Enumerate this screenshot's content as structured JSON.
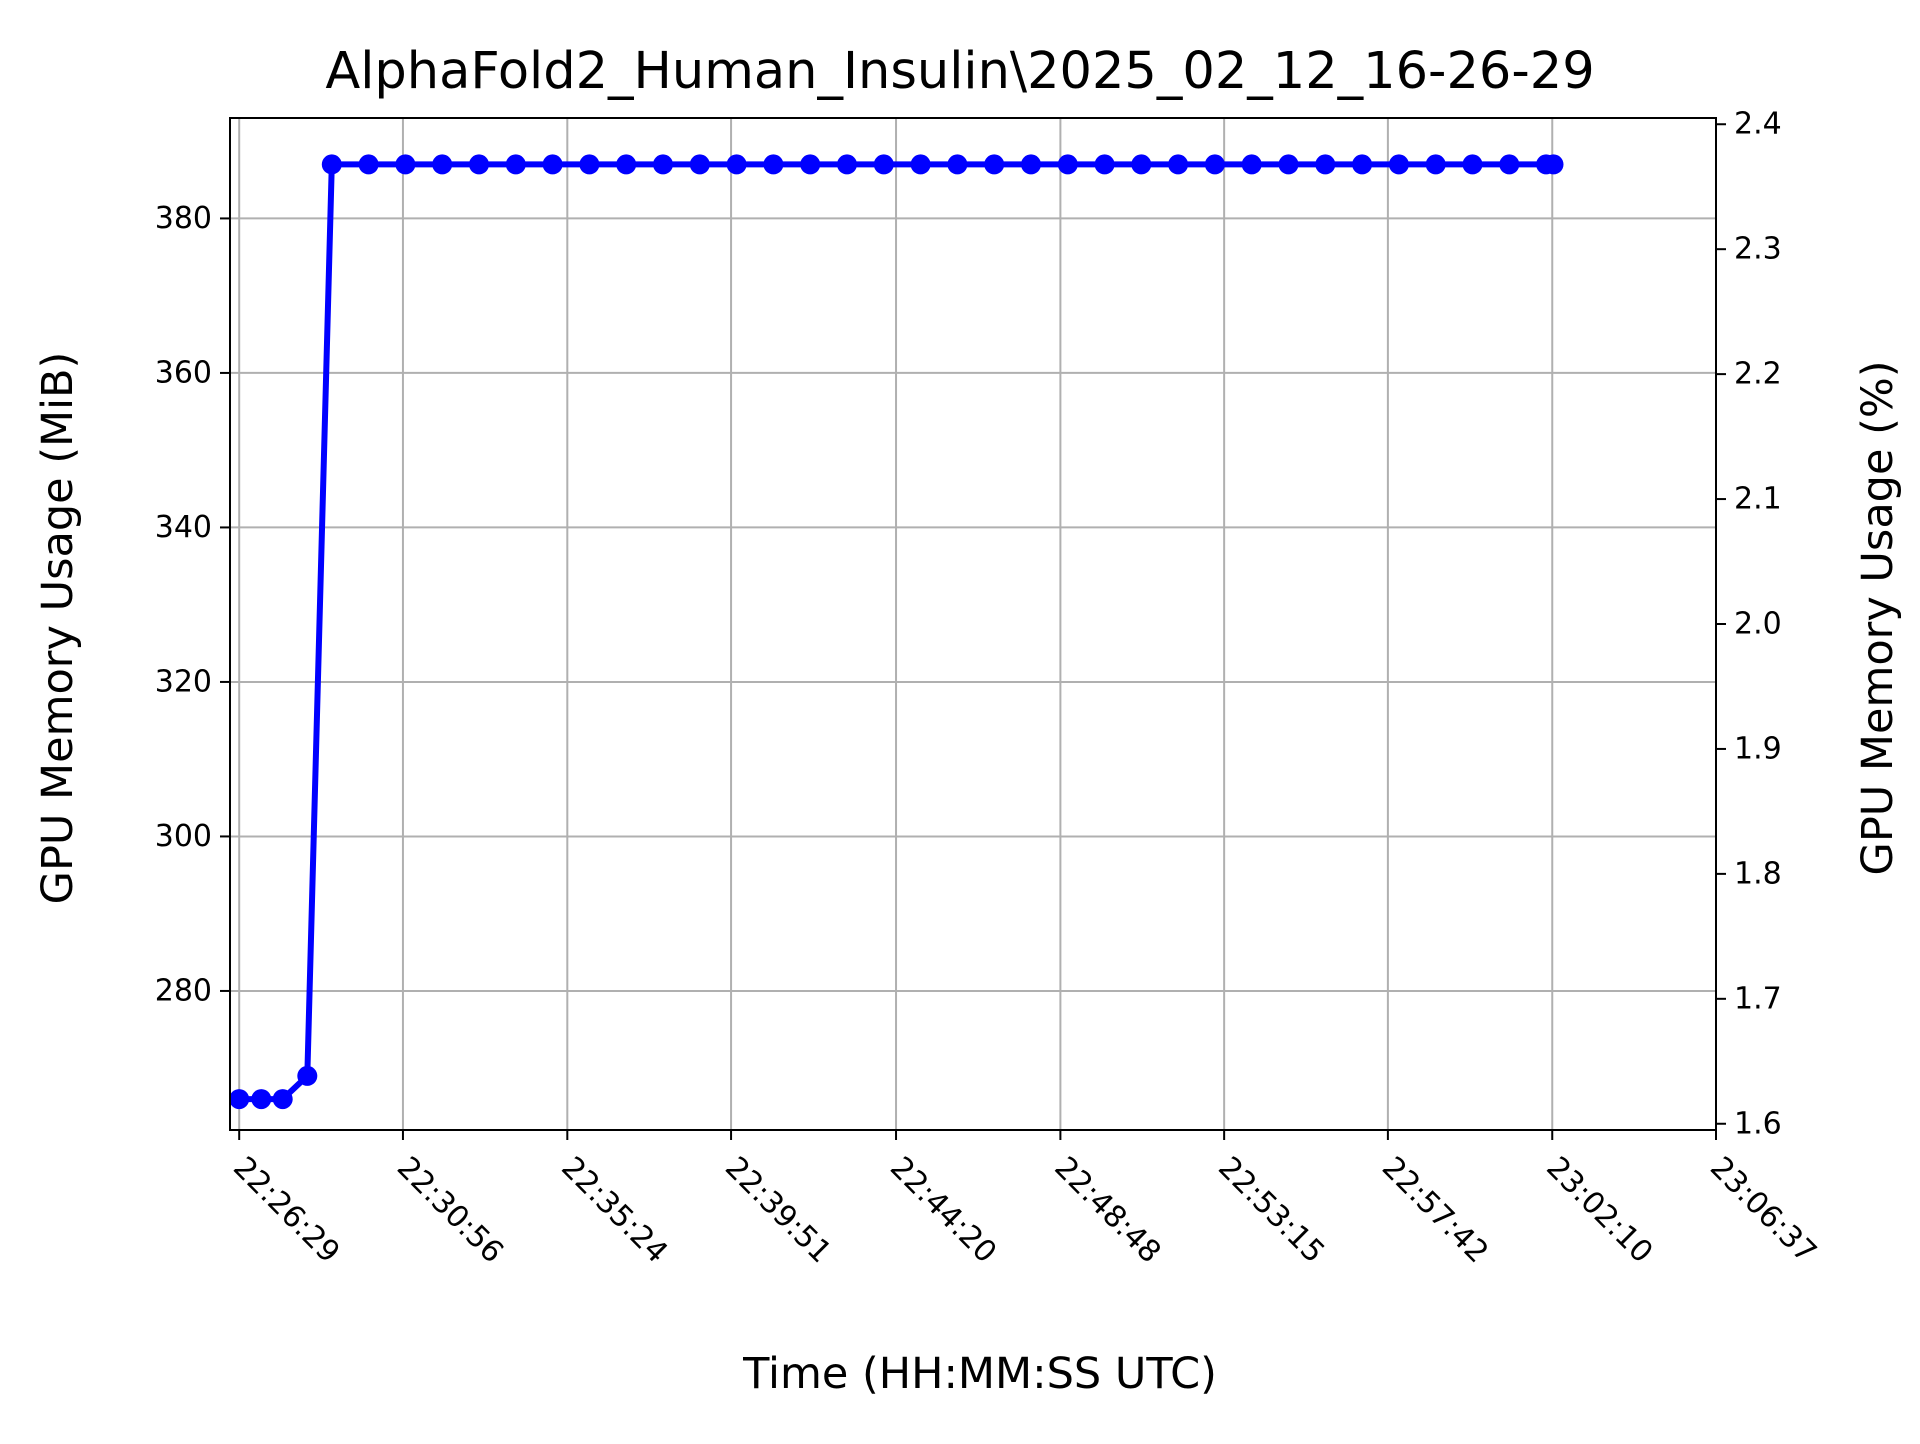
{
  "chart_data": {
    "type": "line",
    "title": "AlphaFold2_Human_Insulin\\2025_02_12_16-26-29",
    "xlabel": "Time (HH:MM:SS UTC)",
    "ylabel": "GPU Memory Usage (MiB)",
    "ylabel_right": "GPU Memory Usage (%)",
    "x_ticks": [
      "22:26:29",
      "22:30:56",
      "22:35:24",
      "22:39:51",
      "22:44:20",
      "22:48:48",
      "22:53:15",
      "22:57:42",
      "23:02:10",
      "23:06:37"
    ],
    "y_ticks": [
      280,
      300,
      320,
      340,
      360,
      380
    ],
    "y2_ticks": [
      "1.6",
      "1.7",
      "1.8",
      "1.9",
      "2.0",
      "2.1",
      "2.2",
      "2.3",
      "2.4"
    ],
    "xlim": [
      "22:26:14",
      "23:06:37"
    ],
    "ylim": [
      262.0,
      393.0
    ],
    "y2lim": [
      1.595,
      2.405
    ],
    "grid": true,
    "marker": "circle",
    "color": "#0000ff",
    "series": [
      {
        "x": [
          "22:26:29",
          "22:27:05",
          "22:27:40",
          "22:28:20",
          "22:29:00",
          "22:30:00",
          "22:31:00",
          "22:32:00",
          "22:33:00",
          "22:34:00",
          "22:35:00",
          "22:36:00",
          "22:37:00",
          "22:38:00",
          "22:39:00",
          "22:40:00",
          "22:41:00",
          "22:42:00",
          "22:43:00",
          "22:44:00",
          "22:45:00",
          "22:46:00",
          "22:47:00",
          "22:48:00",
          "22:49:00",
          "22:50:00",
          "22:51:00",
          "22:52:00",
          "22:53:00",
          "22:54:00",
          "22:55:00",
          "22:56:00",
          "22:57:00",
          "22:58:00",
          "22:59:00",
          "23:00:00",
          "23:01:00",
          "23:02:00",
          "23:02:12"
        ],
        "values": [
          266,
          266,
          266,
          269,
          387,
          387,
          387,
          387,
          387,
          387,
          387,
          387,
          387,
          387,
          387,
          387,
          387,
          387,
          387,
          387,
          387,
          387,
          387,
          387,
          387,
          387,
          387,
          387,
          387,
          387,
          387,
          387,
          387,
          387,
          387,
          387,
          387,
          387,
          387
        ]
      }
    ]
  }
}
